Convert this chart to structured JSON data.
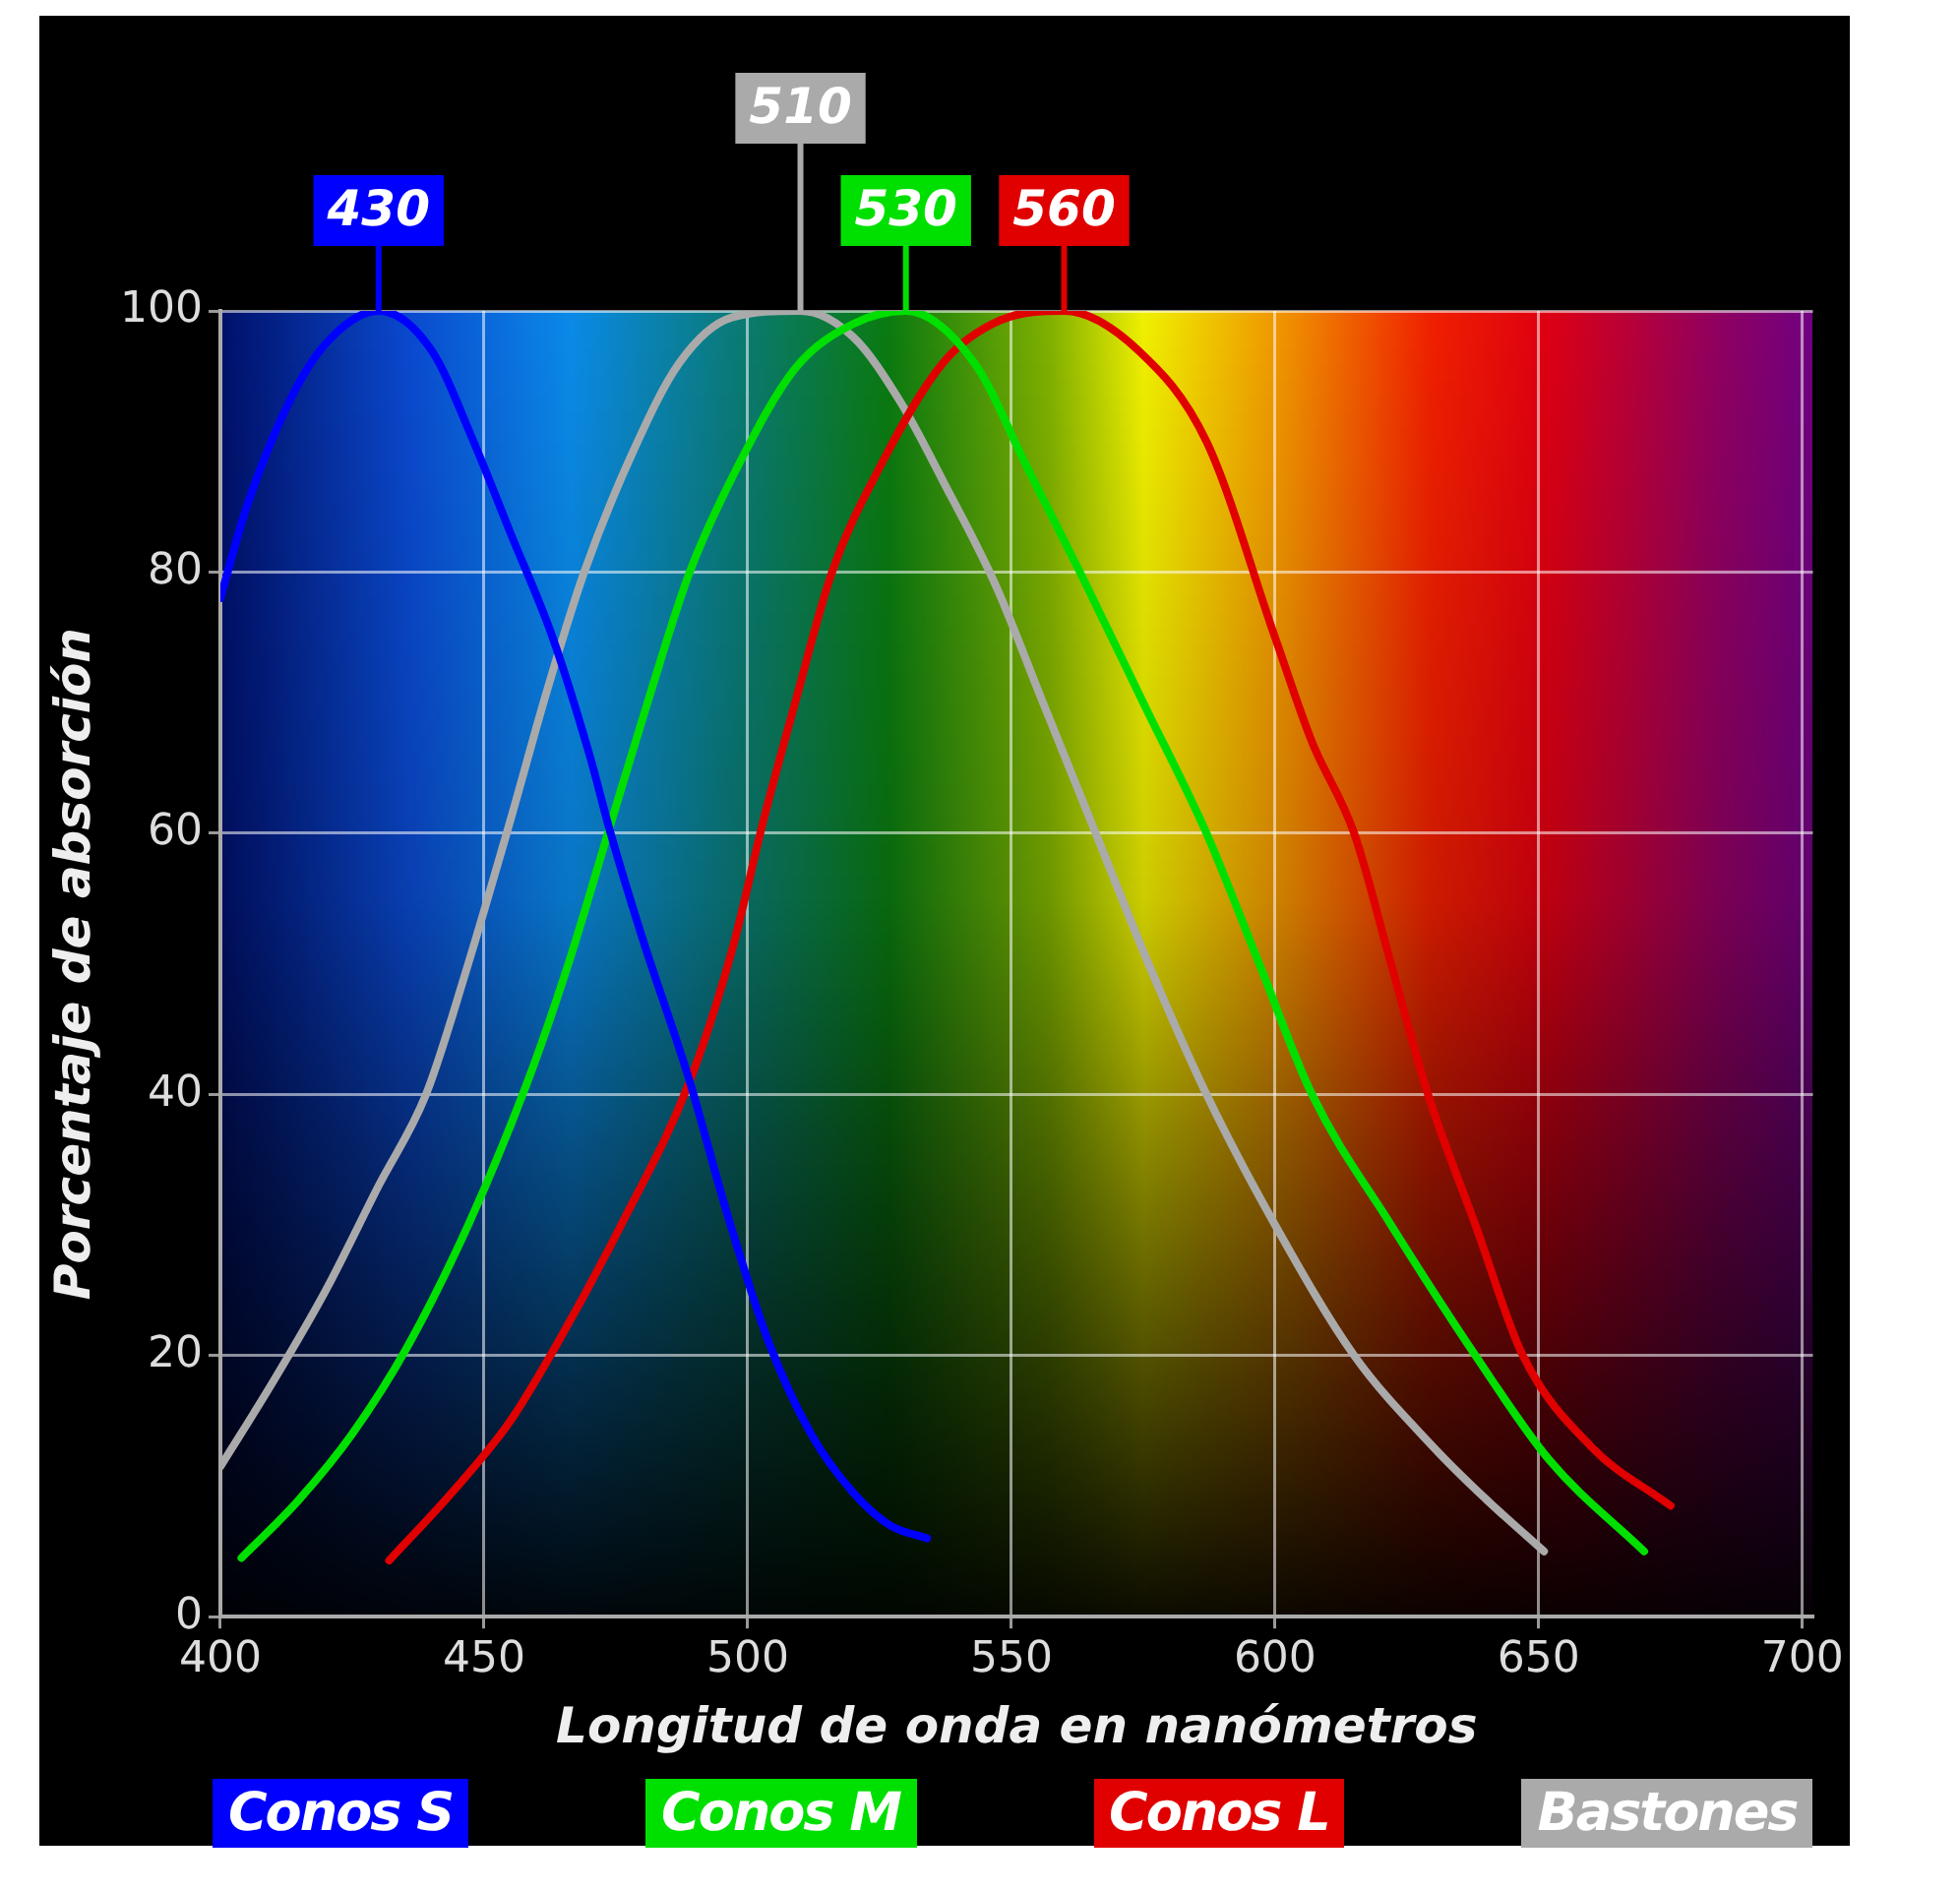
{
  "chart_data": {
    "type": "line",
    "xlabel": "Longitud de onda en nanómetros",
    "ylabel": "Porcentaje de absorción",
    "xlim": [
      400,
      702
    ],
    "xticks": [
      400,
      450,
      500,
      550,
      600,
      650,
      700
    ],
    "ylim": [
      0,
      100
    ],
    "yticks": [
      0,
      20,
      40,
      60,
      80,
      100
    ],
    "grid": true,
    "legend": "bottom",
    "series": [
      {
        "name": "Conos S",
        "color": "#0000ff",
        "x": [
          400,
          405,
          413,
          420,
          430,
          440,
          448,
          455,
          463,
          470,
          474,
          480,
          489,
          496,
          504,
          512,
          520,
          527,
          534
        ],
        "values": [
          78,
          85,
          93,
          97.5,
          100,
          97,
          90,
          83,
          75,
          66,
          60,
          52,
          41,
          31,
          21,
          14,
          9.5,
          7,
          6
        ]
      },
      {
        "name": "Conos M",
        "color": "#00e000",
        "x": [
          404,
          415,
          425,
          435.5,
          447,
          458,
          466,
          474,
          481,
          489,
          498,
          509,
          520,
          530,
          543,
          553,
          563,
          575,
          587,
          597,
          607,
          622,
          638,
          652,
          670
        ],
        "values": [
          4.5,
          9,
          14,
          20.7,
          30,
          40.7,
          50,
          60.7,
          70,
          80,
          88,
          95.6,
          99,
          100,
          96,
          88,
          80,
          70,
          60,
          50,
          40,
          30,
          20,
          12,
          5
        ]
      },
      {
        "name": "Conos L",
        "color": "#e00000",
        "x": [
          432,
          445,
          455,
          464,
          476,
          489,
          497,
          503,
          509,
          516,
          525,
          537,
          548,
          560,
          574,
          587,
          600,
          607,
          615,
          622,
          629,
          638,
          647,
          660,
          675
        ],
        "values": [
          4.3,
          10,
          15,
          21,
          30,
          41,
          51,
          61,
          70,
          80,
          88,
          96,
          99.3,
          100,
          97,
          90,
          75,
          67,
          60,
          50,
          40,
          30,
          20,
          13,
          8.5
        ]
      },
      {
        "name": "Bastones",
        "color": "#aaaaaa",
        "x": [
          400,
          410,
          420,
          430,
          439,
          447,
          455,
          462,
          469,
          478,
          487,
          497,
          510,
          520,
          529,
          537,
          547,
          556,
          566,
          576,
          587,
          600,
          615,
          630,
          640,
          651
        ],
        "values": [
          11.5,
          18,
          25,
          33,
          40,
          50,
          61,
          71,
          80,
          89,
          96,
          99.5,
          100,
          98,
          93,
          87,
          79,
          70,
          60,
          50,
          40,
          30,
          20,
          13,
          9,
          5
        ]
      }
    ],
    "annotations": [
      {
        "text": "430",
        "x": 430,
        "y": 100
      },
      {
        "text": "510",
        "x": 510,
        "y": 100
      },
      {
        "text": "530",
        "x": 530,
        "y": 100
      },
      {
        "text": "560",
        "x": 560,
        "y": 100
      }
    ]
  }
}
